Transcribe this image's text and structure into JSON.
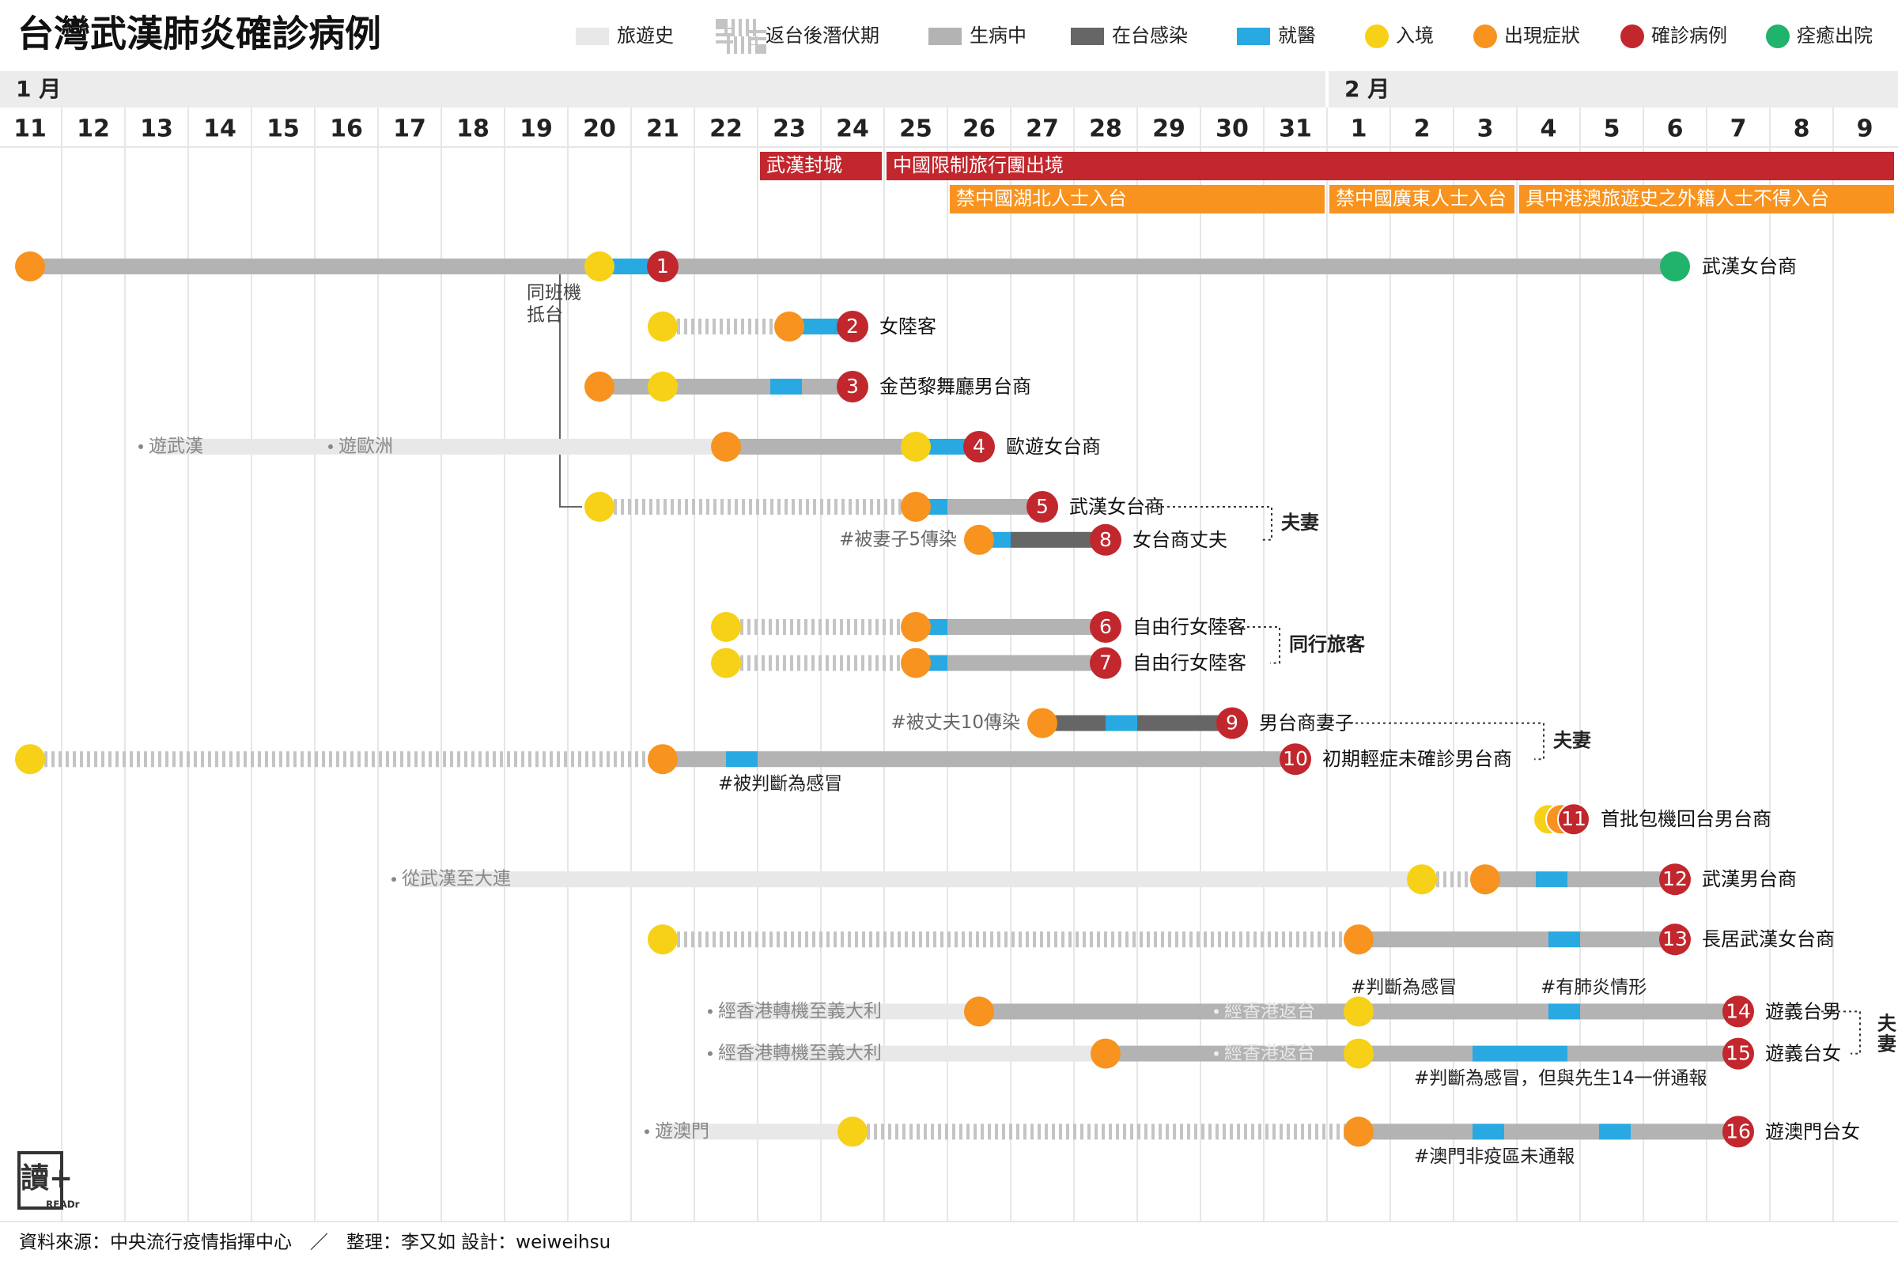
{
  "title": "台灣武漢肺炎確診病例",
  "legend": [
    {
      "label": "旅遊史",
      "kind": "bar",
      "color": "#e8e8e8"
    },
    {
      "label": "返台後潛伏期",
      "kind": "dashed",
      "color": "#c4c4c4"
    },
    {
      "label": "生病中",
      "kind": "bar",
      "color": "#b3b3b3"
    },
    {
      "label": "在台感染",
      "kind": "bar",
      "color": "#666666"
    },
    {
      "label": "就醫",
      "kind": "bar",
      "color": "#28a9e1"
    },
    {
      "label": "入境",
      "kind": "dot",
      "color": "#f7d117"
    },
    {
      "label": "出現症狀",
      "kind": "dot",
      "color": "#f7931e"
    },
    {
      "label": "確診病例",
      "kind": "dot",
      "color": "#c1272d"
    },
    {
      "label": "痊癒出院",
      "kind": "dot",
      "color": "#1fb36b"
    }
  ],
  "colors": {
    "travel": "#e8e8e8",
    "incubation": "#c4c4c4",
    "sick": "#b3b3b3",
    "local": "#666666",
    "hospital": "#28a9e1",
    "entry": "#f7d117",
    "symptom": "#f7931e",
    "confirmed": "#c1272d",
    "recovered": "#1fb36b",
    "event_red": "#c1272d",
    "event_orange": "#f7931e",
    "grid": "#e6e6e6",
    "month_bg": "#ececec"
  },
  "months": [
    {
      "label": "1 月",
      "start": "01-11"
    },
    {
      "label": "2 月",
      "start": "02-01"
    }
  ],
  "footer": {
    "source": "資料來源：中央流行疫情指揮中心　／　整理：李又如 設計：weiweihsu",
    "logo_text": "讀+",
    "logo_sub": "READr"
  },
  "chart_data": {
    "type": "timeline",
    "x_axis": {
      "ticks": [
        "11",
        "12",
        "13",
        "14",
        "15",
        "16",
        "17",
        "18",
        "19",
        "20",
        "21",
        "22",
        "23",
        "24",
        "25",
        "26",
        "27",
        "28",
        "29",
        "30",
        "31",
        "1",
        "2",
        "3",
        "4",
        "5",
        "6",
        "7",
        "8",
        "9"
      ],
      "dates": [
        "01-11",
        "01-12",
        "01-13",
        "01-14",
        "01-15",
        "01-16",
        "01-17",
        "01-18",
        "01-19",
        "01-20",
        "01-21",
        "01-22",
        "01-23",
        "01-24",
        "01-25",
        "01-26",
        "01-27",
        "01-28",
        "01-29",
        "01-30",
        "01-31",
        "02-01",
        "02-02",
        "02-03",
        "02-04",
        "02-05",
        "02-06",
        "02-07",
        "02-08",
        "02-09"
      ]
    },
    "events": [
      {
        "label": "武漢封城",
        "start": "01-23",
        "end": "01-25",
        "color": "red",
        "row": 0
      },
      {
        "label": "中國限制旅行團出境",
        "start": "01-25",
        "end": "02-10",
        "color": "red",
        "row": 0
      },
      {
        "label": "禁中國湖北人士入台",
        "start": "01-26",
        "end": "02-01",
        "color": "orange",
        "row": 1
      },
      {
        "label": "禁中國廣東人士入台",
        "start": "02-01",
        "end": "02-04",
        "color": "orange",
        "row": 1
      },
      {
        "label": "具中港澳旅遊史之外籍人士不得入台",
        "start": "02-04",
        "end": "02-10",
        "color": "orange",
        "row": 1
      }
    ],
    "cases": [
      {
        "id": "1",
        "label": "武漢女台商",
        "row": 0,
        "segments": [
          {
            "type": "sick",
            "from": "01-11",
            "to": "01-20"
          },
          {
            "type": "hospital",
            "from": "01-20",
            "to": "01-21"
          },
          {
            "type": "sick",
            "from": "01-21",
            "to": "02-06"
          }
        ],
        "markers": [
          {
            "type": "symptom",
            "date": "01-11"
          },
          {
            "type": "entry",
            "date": "01-20"
          },
          {
            "type": "confirmed",
            "date": "01-21"
          },
          {
            "type": "recovered",
            "date": "02-06"
          }
        ]
      },
      {
        "id": "2",
        "label": "女陸客",
        "row": 1,
        "segments": [
          {
            "type": "incubation",
            "from": "01-21",
            "to": "01-23"
          },
          {
            "type": "hospital",
            "from": "01-23",
            "to": "01-24"
          }
        ],
        "markers": [
          {
            "type": "entry",
            "date": "01-21"
          },
          {
            "type": "symptom",
            "date": "01-23"
          },
          {
            "type": "confirmed",
            "date": "01-24"
          }
        ]
      },
      {
        "id": "3",
        "label": "金芭黎舞廳男台商",
        "row": 2,
        "segments": [
          {
            "type": "sick",
            "from": "01-20",
            "to": "01-22.7"
          },
          {
            "type": "hospital",
            "from": "01-22.7",
            "to": "01-23.2"
          },
          {
            "type": "sick",
            "from": "01-23.2",
            "to": "01-24"
          }
        ],
        "markers": [
          {
            "type": "symptom",
            "date": "01-20"
          },
          {
            "type": "entry",
            "date": "01-21"
          },
          {
            "type": "confirmed",
            "date": "01-24"
          }
        ]
      },
      {
        "id": "4",
        "label": "歐遊女台商",
        "row": 3,
        "segments": [
          {
            "type": "travel",
            "from": "01-13",
            "to": "01-16"
          },
          {
            "type": "travel",
            "from": "01-16",
            "to": "01-22"
          },
          {
            "type": "sick",
            "from": "01-22",
            "to": "01-25"
          },
          {
            "type": "hospital",
            "from": "01-25",
            "to": "01-26"
          }
        ],
        "notes": [
          {
            "text": "遊武漢",
            "date": "01-13",
            "style": "travel"
          },
          {
            "text": "遊歐洲",
            "date": "01-16",
            "style": "travel"
          }
        ],
        "markers": [
          {
            "type": "symptom",
            "date": "01-22"
          },
          {
            "type": "entry",
            "date": "01-25"
          },
          {
            "type": "confirmed",
            "date": "01-26"
          }
        ]
      },
      {
        "id": "5",
        "label": "武漢女台商",
        "row": 4,
        "segments": [
          {
            "type": "incubation",
            "from": "01-20",
            "to": "01-25"
          },
          {
            "type": "hospital",
            "from": "01-25",
            "to": "01-25.5"
          },
          {
            "type": "sick",
            "from": "01-25.5",
            "to": "01-27"
          }
        ],
        "markers": [
          {
            "type": "entry",
            "date": "01-20"
          },
          {
            "type": "symptom",
            "date": "01-25"
          },
          {
            "type": "confirmed",
            "date": "01-27"
          }
        ]
      },
      {
        "id": "8",
        "label": "女台商丈夫",
        "row": 4.55,
        "segments": [
          {
            "type": "hospital",
            "from": "01-26",
            "to": "01-26.5"
          },
          {
            "type": "local",
            "from": "01-26.5",
            "to": "01-28"
          }
        ],
        "notes": [
          {
            "text": "#被妻子5傳染",
            "date": "01-26",
            "style": "left"
          }
        ],
        "markers": [
          {
            "type": "symptom",
            "date": "01-26"
          },
          {
            "type": "confirmed",
            "date": "01-28"
          }
        ]
      },
      {
        "id": "6",
        "label": "自由行女陸客",
        "row": 6,
        "segments": [
          {
            "type": "incubation",
            "from": "01-22",
            "to": "01-25"
          },
          {
            "type": "hospital",
            "from": "01-25",
            "to": "01-25.5"
          },
          {
            "type": "sick",
            "from": "01-25.5",
            "to": "01-28"
          }
        ],
        "markers": [
          {
            "type": "entry",
            "date": "01-22"
          },
          {
            "type": "symptom",
            "date": "01-25"
          },
          {
            "type": "confirmed",
            "date": "01-28"
          }
        ]
      },
      {
        "id": "7",
        "label": "自由行女陸客",
        "row": 6.6,
        "segments": [
          {
            "type": "incubation",
            "from": "01-22",
            "to": "01-25"
          },
          {
            "type": "hospital",
            "from": "01-25",
            "to": "01-25.5"
          },
          {
            "type": "sick",
            "from": "01-25.5",
            "to": "01-28"
          }
        ],
        "markers": [
          {
            "type": "entry",
            "date": "01-22"
          },
          {
            "type": "symptom",
            "date": "01-25"
          },
          {
            "type": "confirmed",
            "date": "01-28"
          }
        ]
      },
      {
        "id": "9",
        "label": "男台商妻子",
        "row": 7.6,
        "segments": [
          {
            "type": "local",
            "from": "01-27",
            "to": "01-28"
          },
          {
            "type": "hospital",
            "from": "01-28",
            "to": "01-28.5"
          },
          {
            "type": "local",
            "from": "01-28.5",
            "to": "01-30"
          }
        ],
        "notes": [
          {
            "text": "#被丈夫10傳染",
            "date": "01-27",
            "style": "left"
          }
        ],
        "markers": [
          {
            "type": "symptom",
            "date": "01-27"
          },
          {
            "type": "confirmed",
            "date": "01-30"
          }
        ]
      },
      {
        "id": "10",
        "label": "初期輕症未確診男台商",
        "row": 8.2,
        "segments": [
          {
            "type": "incubation",
            "from": "01-11",
            "to": "01-21"
          },
          {
            "type": "sick",
            "from": "01-21",
            "to": "01-22"
          },
          {
            "type": "hospital",
            "from": "01-22",
            "to": "01-22.5"
          },
          {
            "type": "sick",
            "from": "01-22.5",
            "to": "01-31"
          }
        ],
        "notes": [
          {
            "text": "#被判斷為感冒",
            "date": "01-22",
            "style": "below"
          }
        ],
        "markers": [
          {
            "type": "entry",
            "date": "01-11"
          },
          {
            "type": "symptom",
            "date": "01-21"
          },
          {
            "type": "confirmed",
            "date": "01-31"
          }
        ]
      },
      {
        "id": "11",
        "label": "首批包機回台男台商",
        "row": 9.2,
        "segments": [],
        "markers": [
          {
            "type": "entry",
            "date": "02-04"
          },
          {
            "type": "symptom",
            "date": "02-04.2"
          },
          {
            "type": "confirmed",
            "date": "02-04.4"
          }
        ]
      },
      {
        "id": "12",
        "label": "武漢男台商",
        "row": 10.2,
        "segments": [
          {
            "type": "travel",
            "from": "01-17",
            "to": "02-02"
          },
          {
            "type": "incubation",
            "from": "02-02",
            "to": "02-03"
          },
          {
            "type": "sick",
            "from": "02-03",
            "to": "02-03.8"
          },
          {
            "type": "hospital",
            "from": "02-03.8",
            "to": "02-04.3"
          },
          {
            "type": "sick",
            "from": "02-04.3",
            "to": "02-06"
          }
        ],
        "notes": [
          {
            "text": "從武漢至大連",
            "date": "01-17",
            "style": "travel"
          }
        ],
        "markers": [
          {
            "type": "entry",
            "date": "02-02"
          },
          {
            "type": "symptom",
            "date": "02-03"
          },
          {
            "type": "confirmed",
            "date": "02-06"
          }
        ]
      },
      {
        "id": "13",
        "label": "長居武漢女台商",
        "row": 11.2,
        "segments": [
          {
            "type": "incubation",
            "from": "01-21",
            "to": "02-01"
          },
          {
            "type": "sick",
            "from": "02-01",
            "to": "02-04"
          },
          {
            "type": "hospital",
            "from": "02-04",
            "to": "02-04.5"
          },
          {
            "type": "sick",
            "from": "02-04.5",
            "to": "02-06"
          }
        ],
        "markers": [
          {
            "type": "entry",
            "date": "01-21"
          },
          {
            "type": "symptom",
            "date": "02-01"
          },
          {
            "type": "confirmed",
            "date": "02-06"
          }
        ]
      },
      {
        "id": "14",
        "label": "遊義台男",
        "row": 12.4,
        "segments": [
          {
            "type": "travel",
            "from": "01-22",
            "to": "01-26"
          },
          {
            "type": "sick",
            "from": "01-26",
            "to": "02-01"
          },
          {
            "type": "hospital",
            "from": "02-01",
            "to": "02-01.2"
          },
          {
            "type": "sick",
            "from": "02-01.2",
            "to": "02-04"
          },
          {
            "type": "hospital",
            "from": "02-04",
            "to": "02-04.5"
          },
          {
            "type": "sick",
            "from": "02-04.5",
            "to": "02-07"
          }
        ],
        "notes": [
          {
            "text": "經香港轉機至義大利",
            "date": "01-22",
            "style": "travel"
          },
          {
            "text": "經香港返台",
            "date": "01-30",
            "style": "onbar"
          },
          {
            "text": "#判斷為感冒",
            "date": "02-01",
            "style": "above"
          },
          {
            "text": "#有肺炎情形",
            "date": "02-04",
            "style": "above"
          }
        ],
        "markers": [
          {
            "type": "symptom",
            "date": "01-26"
          },
          {
            "type": "entry",
            "date": "02-01"
          },
          {
            "type": "confirmed",
            "date": "02-07"
          }
        ]
      },
      {
        "id": "15",
        "label": "遊義台女",
        "row": 13.1,
        "segments": [
          {
            "type": "travel",
            "from": "01-22",
            "to": "01-28"
          },
          {
            "type": "sick",
            "from": "01-28",
            "to": "02-02.8"
          },
          {
            "type": "hospital",
            "from": "02-02.8",
            "to": "02-04.3"
          },
          {
            "type": "sick",
            "from": "02-04.3",
            "to": "02-07"
          }
        ],
        "notes": [
          {
            "text": "經香港轉機至義大利",
            "date": "01-22",
            "style": "travel"
          },
          {
            "text": "經香港返台",
            "date": "01-30",
            "style": "onbar"
          },
          {
            "text": "#判斷為感冒，但與先生14一併通報",
            "date": "02-02",
            "style": "below"
          }
        ],
        "markers": [
          {
            "type": "symptom",
            "date": "01-28"
          },
          {
            "type": "entry",
            "date": "02-01"
          },
          {
            "type": "confirmed",
            "date": "02-07"
          }
        ]
      },
      {
        "id": "16",
        "label": "遊澳門台女",
        "row": 14.4,
        "segments": [
          {
            "type": "travel",
            "from": "01-21",
            "to": "01-24"
          },
          {
            "type": "incubation",
            "from": "01-24",
            "to": "02-01"
          },
          {
            "type": "sick",
            "from": "02-01",
            "to": "02-02.8"
          },
          {
            "type": "hospital",
            "from": "02-02.8",
            "to": "02-03.3"
          },
          {
            "type": "sick",
            "from": "02-03.3",
            "to": "02-04.8"
          },
          {
            "type": "hospital",
            "from": "02-04.8",
            "to": "02-05.3"
          },
          {
            "type": "sick",
            "from": "02-05.3",
            "to": "02-07"
          }
        ],
        "notes": [
          {
            "text": "遊澳門",
            "date": "01-21",
            "style": "travel"
          },
          {
            "text": "#澳門非疫區未通報",
            "date": "02-02",
            "style": "below"
          }
        ],
        "markers": [
          {
            "type": "entry",
            "date": "01-24"
          },
          {
            "type": "symptom",
            "date": "02-01"
          },
          {
            "type": "confirmed",
            "date": "02-07"
          }
        ]
      }
    ],
    "relations": [
      {
        "label": "夫妻",
        "cases": [
          "5",
          "8"
        ]
      },
      {
        "label": "同行旅客",
        "cases": [
          "6",
          "7"
        ]
      },
      {
        "label": "夫妻",
        "cases": [
          "9",
          "10"
        ]
      },
      {
        "label": "夫妻",
        "cases": [
          "14",
          "15"
        ]
      }
    ],
    "flight_note": {
      "label": "同班機抵台",
      "cases": [
        "1",
        "5"
      ]
    }
  }
}
